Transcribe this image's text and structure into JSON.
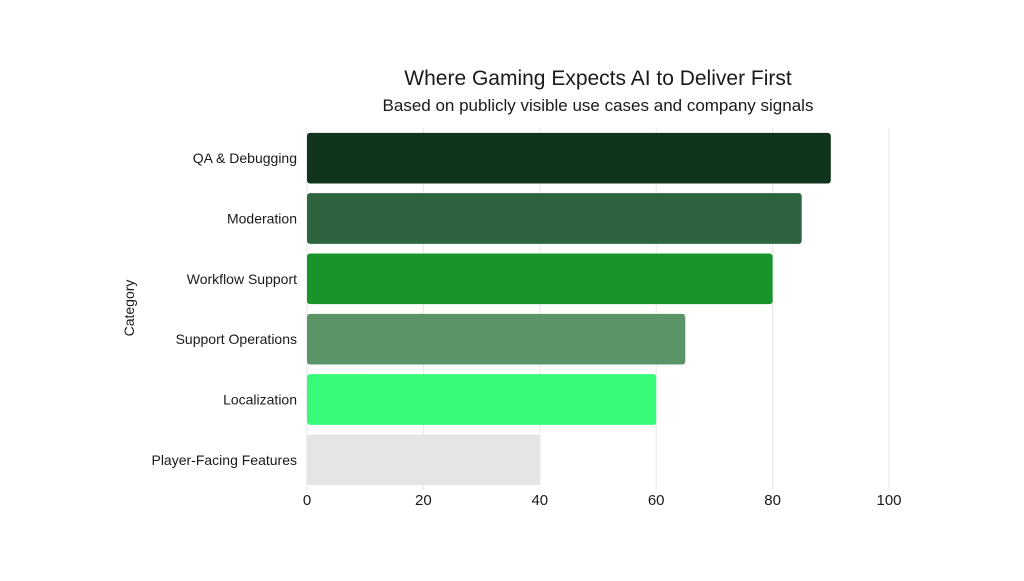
{
  "chart_data": {
    "type": "bar",
    "orientation": "horizontal",
    "title": "Where Gaming Expects AI to Deliver First",
    "subtitle": "Based on publicly visible use cases and company signals",
    "xlabel": "",
    "ylabel": "Category",
    "categories": [
      "QA & Debugging",
      "Moderation",
      "Workflow Support",
      "Support Operations",
      "Localization",
      "Player-Facing Features"
    ],
    "values": [
      90,
      85,
      80,
      65,
      60,
      40
    ],
    "bar_colors": [
      "#11351c",
      "#2e6340",
      "#18952a",
      "#5a9467",
      "#38fc79",
      "#e5e5e5"
    ],
    "xlim": [
      0,
      100
    ],
    "xticks": [
      0,
      20,
      40,
      60,
      80,
      100
    ],
    "xtick_labels": [
      "0",
      "20",
      "40",
      "60",
      "80",
      "100"
    ],
    "grid": "vertical",
    "grid_color": "#e6e6e6",
    "legend": "none"
  }
}
